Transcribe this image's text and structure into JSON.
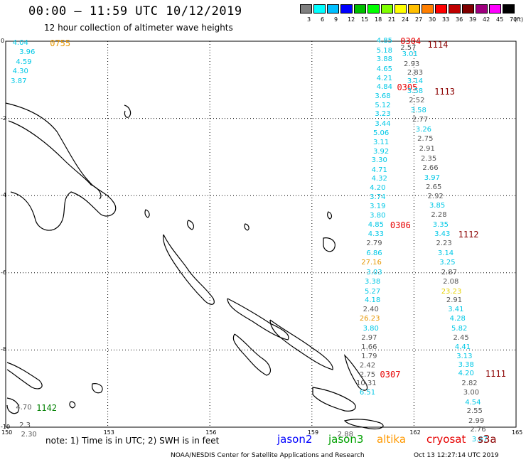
{
  "header": {
    "title": "00:00 – 11:59 UTC 10/12/2019",
    "subtitle": "12 hour collection of altimeter wave heights"
  },
  "scale": {
    "unit": "(ft)",
    "bins": [
      {
        "label": "3",
        "color": "#7f7f7f"
      },
      {
        "label": "6",
        "color": "#00ffff"
      },
      {
        "label": "9",
        "color": "#00bfff"
      },
      {
        "label": "12",
        "color": "#0000ff"
      },
      {
        "label": "15",
        "color": "#00bf00"
      },
      {
        "label": "18",
        "color": "#00ff00"
      },
      {
        "label": "21",
        "color": "#7fff00"
      },
      {
        "label": "24",
        "color": "#ffff00"
      },
      {
        "label": "27",
        "color": "#ffbf00"
      },
      {
        "label": "30",
        "color": "#ff7f00"
      },
      {
        "label": "33",
        "color": "#ff0000"
      },
      {
        "label": "36",
        "color": "#bf0000"
      },
      {
        "label": "39",
        "color": "#7f0000"
      },
      {
        "label": "42",
        "color": "#9f007f"
      },
      {
        "label": "45",
        "color": "#ff00ff"
      },
      {
        "label": "70",
        "color": "#000000"
      }
    ]
  },
  "axes": {
    "x_ticks": [
      "150",
      "153",
      "156",
      "159",
      "162",
      "165"
    ],
    "y_ticks": [
      "0",
      "-2",
      "-4",
      "-6",
      "-8",
      "-10"
    ],
    "x_range": [
      150,
      165
    ],
    "y_range": [
      -10,
      0
    ]
  },
  "colors": {
    "grey": "#555555",
    "cyan": "#00c8e6",
    "orange": "#e69600",
    "yellow": "#e6d200",
    "red": "#e60000",
    "darkred": "#8b0000",
    "green": "#008000",
    "jason2": "#0000ff",
    "jason3": "#00a000",
    "altika": "#ff9900",
    "cryosat": "#e60000",
    "s3a": "#8b0000"
  },
  "map_labels": [
    {
      "text": "4.04",
      "c": "cyan",
      "lon": 150.2,
      "lat": -0.05
    },
    {
      "text": "0755",
      "c": "orange",
      "lon": 151.3,
      "lat": -0.05,
      "time": true
    },
    {
      "text": "3.96",
      "c": "cyan",
      "lon": 150.4,
      "lat": -0.3
    },
    {
      "text": "4.59",
      "c": "cyan",
      "lon": 150.3,
      "lat": -0.55
    },
    {
      "text": "4.30",
      "c": "cyan",
      "lon": 150.2,
      "lat": -0.8
    },
    {
      "text": "3.87",
      "c": "cyan",
      "lon": 150.15,
      "lat": -1.05
    },
    {
      "text": "4.85",
      "c": "cyan",
      "lon": 160.9,
      "lat": 0.0
    },
    {
      "text": "0304",
      "c": "red",
      "lon": 161.6,
      "lat": -0.0,
      "time": true
    },
    {
      "text": "2.57",
      "c": "grey",
      "lon": 161.6,
      "lat": -0.18
    },
    {
      "text": "1114",
      "c": "darkred",
      "lon": 162.4,
      "lat": -0.1,
      "time": true
    },
    {
      "text": "5.18",
      "c": "cyan",
      "lon": 160.9,
      "lat": -0.25
    },
    {
      "text": "3.01",
      "c": "cyan",
      "lon": 161.65,
      "lat": -0.35
    },
    {
      "text": "3.88",
      "c": "cyan",
      "lon": 160.9,
      "lat": -0.48
    },
    {
      "text": "2.93",
      "c": "grey",
      "lon": 161.7,
      "lat": -0.6
    },
    {
      "text": "4.65",
      "c": "cyan",
      "lon": 160.9,
      "lat": -0.73
    },
    {
      "text": "2.83",
      "c": "grey",
      "lon": 161.8,
      "lat": -0.83
    },
    {
      "text": "4.21",
      "c": "cyan",
      "lon": 160.9,
      "lat": -0.97
    },
    {
      "text": "3.14",
      "c": "cyan",
      "lon": 161.8,
      "lat": -1.05
    },
    {
      "text": "4.84",
      "c": "cyan",
      "lon": 160.9,
      "lat": -1.2
    },
    {
      "text": "0305",
      "c": "red",
      "lon": 161.5,
      "lat": -1.2,
      "time": true
    },
    {
      "text": "3.58",
      "c": "cyan",
      "lon": 161.8,
      "lat": -1.3
    },
    {
      "text": "1113",
      "c": "darkred",
      "lon": 162.6,
      "lat": -1.3,
      "time": true
    },
    {
      "text": "3.68",
      "c": "cyan",
      "lon": 160.85,
      "lat": -1.43
    },
    {
      "text": "2.52",
      "c": "grey",
      "lon": 161.85,
      "lat": -1.55
    },
    {
      "text": "5.12",
      "c": "cyan",
      "lon": 160.85,
      "lat": -1.67
    },
    {
      "text": "3.58",
      "c": "cyan",
      "lon": 161.9,
      "lat": -1.8
    },
    {
      "text": "3.23",
      "c": "cyan",
      "lon": 160.85,
      "lat": -1.9
    },
    {
      "text": "2.77",
      "c": "grey",
      "lon": 161.95,
      "lat": -2.05
    },
    {
      "text": "3.44",
      "c": "cyan",
      "lon": 160.85,
      "lat": -2.15
    },
    {
      "text": "5.06",
      "c": "cyan",
      "lon": 160.8,
      "lat": -2.4
    },
    {
      "text": "3.26",
      "c": "cyan",
      "lon": 162.05,
      "lat": -2.3
    },
    {
      "text": "2.75",
      "c": "grey",
      "lon": 162.1,
      "lat": -2.55
    },
    {
      "text": "3.11",
      "c": "cyan",
      "lon": 160.8,
      "lat": -2.63
    },
    {
      "text": "2.91",
      "c": "grey",
      "lon": 162.15,
      "lat": -2.8
    },
    {
      "text": "3.92",
      "c": "cyan",
      "lon": 160.8,
      "lat": -2.87
    },
    {
      "text": "2.35",
      "c": "grey",
      "lon": 162.2,
      "lat": -3.05
    },
    {
      "text": "3.30",
      "c": "cyan",
      "lon": 160.75,
      "lat": -3.1
    },
    {
      "text": "2.66",
      "c": "grey",
      "lon": 162.25,
      "lat": -3.3
    },
    {
      "text": "4.71",
      "c": "cyan",
      "lon": 160.75,
      "lat": -3.35
    },
    {
      "text": "3.97",
      "c": "cyan",
      "lon": 162.3,
      "lat": -3.55
    },
    {
      "text": "4.32",
      "c": "cyan",
      "lon": 160.75,
      "lat": -3.58
    },
    {
      "text": "2.65",
      "c": "grey",
      "lon": 162.35,
      "lat": -3.8
    },
    {
      "text": "4.20",
      "c": "cyan",
      "lon": 160.7,
      "lat": -3.82
    },
    {
      "text": "3.74",
      "c": "cyan",
      "lon": 160.7,
      "lat": -4.05
    },
    {
      "text": "2.92",
      "c": "grey",
      "lon": 162.4,
      "lat": -4.03
    },
    {
      "text": "3.19",
      "c": "cyan",
      "lon": 160.7,
      "lat": -4.3
    },
    {
      "text": "3.85",
      "c": "cyan",
      "lon": 162.45,
      "lat": -4.28
    },
    {
      "text": "3.80",
      "c": "cyan",
      "lon": 160.7,
      "lat": -4.53
    },
    {
      "text": "2.28",
      "c": "grey",
      "lon": 162.5,
      "lat": -4.52
    },
    {
      "text": "4.85",
      "c": "cyan",
      "lon": 160.65,
      "lat": -4.77
    },
    {
      "text": "0306",
      "c": "red",
      "lon": 161.3,
      "lat": -4.77,
      "time": true
    },
    {
      "text": "3.35",
      "c": "cyan",
      "lon": 162.55,
      "lat": -4.77
    },
    {
      "text": "4.33",
      "c": "cyan",
      "lon": 160.65,
      "lat": -5.0
    },
    {
      "text": "3.43",
      "c": "cyan",
      "lon": 162.6,
      "lat": -5.0
    },
    {
      "text": "1112",
      "c": "darkred",
      "lon": 163.3,
      "lat": -5.0,
      "time": true
    },
    {
      "text": "2.79",
      "c": "grey",
      "lon": 160.6,
      "lat": -5.25
    },
    {
      "text": "2.23",
      "c": "grey",
      "lon": 162.65,
      "lat": -5.25
    },
    {
      "text": "6.86",
      "c": "cyan",
      "lon": 160.6,
      "lat": -5.5
    },
    {
      "text": "3.14",
      "c": "cyan",
      "lon": 162.7,
      "lat": -5.5
    },
    {
      "text": "27.16",
      "c": "orange",
      "lon": 160.45,
      "lat": -5.75
    },
    {
      "text": "3.25",
      "c": "cyan",
      "lon": 162.75,
      "lat": -5.75
    },
    {
      "text": "3.03",
      "c": "cyan",
      "lon": 160.6,
      "lat": -6.0
    },
    {
      "text": "2.87",
      "c": "grey",
      "lon": 162.8,
      "lat": -6.0
    },
    {
      "text": "3.38",
      "c": "cyan",
      "lon": 160.55,
      "lat": -6.25
    },
    {
      "text": "2.08",
      "c": "grey",
      "lon": 162.85,
      "lat": -6.25
    },
    {
      "text": "5.27",
      "c": "cyan",
      "lon": 160.55,
      "lat": -6.5
    },
    {
      "text": "23.23",
      "c": "yellow",
      "lon": 162.8,
      "lat": -6.5
    },
    {
      "text": "4.18",
      "c": "cyan",
      "lon": 160.55,
      "lat": -6.73
    },
    {
      "text": "2.91",
      "c": "grey",
      "lon": 162.95,
      "lat": -6.73
    },
    {
      "text": "2.40",
      "c": "grey",
      "lon": 160.5,
      "lat": -6.97
    },
    {
      "text": "3.41",
      "c": "cyan",
      "lon": 163.0,
      "lat": -6.97
    },
    {
      "text": "26.23",
      "c": "orange",
      "lon": 160.4,
      "lat": -7.2
    },
    {
      "text": "4.28",
      "c": "cyan",
      "lon": 163.05,
      "lat": -7.2
    },
    {
      "text": "3.80",
      "c": "cyan",
      "lon": 160.5,
      "lat": -7.45
    },
    {
      "text": "5.82",
      "c": "cyan",
      "lon": 163.1,
      "lat": -7.45
    },
    {
      "text": "2.97",
      "c": "grey",
      "lon": 160.45,
      "lat": -7.7
    },
    {
      "text": "2.45",
      "c": "grey",
      "lon": 163.15,
      "lat": -7.7
    },
    {
      "text": "1.66",
      "c": "grey",
      "lon": 160.45,
      "lat": -7.93
    },
    {
      "text": "4.41",
      "c": "cyan",
      "lon": 163.2,
      "lat": -7.93
    },
    {
      "text": "1.79",
      "c": "grey",
      "lon": 160.45,
      "lat": -8.18
    },
    {
      "text": "3.13",
      "c": "cyan",
      "lon": 163.25,
      "lat": -8.18
    },
    {
      "text": "2.42",
      "c": "grey",
      "lon": 160.4,
      "lat": -8.42
    },
    {
      "text": "3.38",
      "c": "cyan",
      "lon": 163.3,
      "lat": -8.4
    },
    {
      "text": "2.75",
      "c": "grey",
      "lon": 160.4,
      "lat": -8.65
    },
    {
      "text": "0307",
      "c": "red",
      "lon": 161.0,
      "lat": -8.63,
      "time": true
    },
    {
      "text": "4.20",
      "c": "cyan",
      "lon": 163.3,
      "lat": -8.62
    },
    {
      "text": "1111",
      "c": "darkred",
      "lon": 164.1,
      "lat": -8.62,
      "time": true
    },
    {
      "text": "10.31",
      "c": "grey",
      "lon": 160.3,
      "lat": -8.88
    },
    {
      "text": "2.82",
      "c": "grey",
      "lon": 163.4,
      "lat": -8.88
    },
    {
      "text": "6.51",
      "c": "cyan",
      "lon": 160.4,
      "lat": -9.12
    },
    {
      "text": "3.00",
      "c": "grey",
      "lon": 163.45,
      "lat": -9.12
    },
    {
      "text": "4.54",
      "c": "cyan",
      "lon": 163.5,
      "lat": -9.37
    },
    {
      "text": "2.55",
      "c": "grey",
      "lon": 163.55,
      "lat": -9.6
    },
    {
      "text": "2.99",
      "c": "grey",
      "lon": 163.6,
      "lat": -9.85
    },
    {
      "text": "2.76",
      "c": "grey",
      "lon": 163.65,
      "lat": -10.08
    },
    {
      "text": "3.87",
      "c": "cyan",
      "lon": 163.7,
      "lat": -10.33
    },
    {
      "text": "2.88",
      "c": "grey",
      "lon": 159.75,
      "lat": -10.2
    },
    {
      "text": "4.70",
      "c": "grey",
      "lon": 150.3,
      "lat": -9.5
    },
    {
      "text": "1142",
      "c": "green",
      "lon": 150.9,
      "lat": -9.5,
      "time": true
    },
    {
      "text": "2.3",
      "c": "grey",
      "lon": 150.4,
      "lat": -9.97
    },
    {
      "text": "2.30",
      "c": "grey",
      "lon": 150.45,
      "lat": -10.2
    }
  ],
  "footer": {
    "note": "note:  1) Time is in UTC;  2) SWH is in feet",
    "legend": [
      {
        "label": "jason2",
        "c": "jason2"
      },
      {
        "label": "jason3",
        "c": "jason3"
      },
      {
        "label": "altika",
        "c": "altika"
      },
      {
        "label": "cryosat",
        "c": "cryosat"
      },
      {
        "label": "s3a",
        "c": "s3a"
      }
    ],
    "credit": "NOAA/NESDIS Center for Satellite Applications and Research",
    "stamp": "Oct 13 12:27:14 UTC 2019"
  }
}
